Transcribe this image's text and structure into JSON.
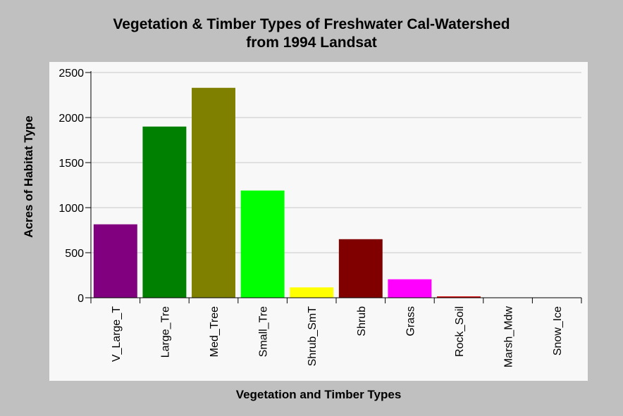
{
  "chart_data": {
    "type": "bar",
    "title": [
      "Vegetation & Timber Types of Freshwater Cal-Watershed",
      "from 1994 Landsat"
    ],
    "xlabel": "Vegetation and Timber Types",
    "ylabel": "Acres of Habitat Type",
    "categories": [
      "V_Large_T",
      "Large_Tre",
      "Med_Tree",
      "Small_Tre",
      "Shrub_SmT",
      "Shrub",
      "Grass",
      "Rock_Soil",
      "Marsh_Mdw",
      "Snow_Ice"
    ],
    "values": [
      815,
      1900,
      2330,
      1190,
      115,
      650,
      205,
      15,
      0,
      0
    ],
    "colors": [
      "#800080",
      "#008000",
      "#808000",
      "#00ff00",
      "#ffff00",
      "#800000",
      "#ff00ff",
      "#cc0000",
      "#808080",
      "#808080"
    ],
    "yticks": [
      0,
      500,
      1000,
      1500,
      2000,
      2500
    ],
    "ylim": [
      0,
      2500
    ],
    "grid": true,
    "legend": "none",
    "colors_theme": {
      "background": "#c0c0c0",
      "plot_area": "#f8f8f8",
      "grid": "#c8c8c8"
    }
  }
}
